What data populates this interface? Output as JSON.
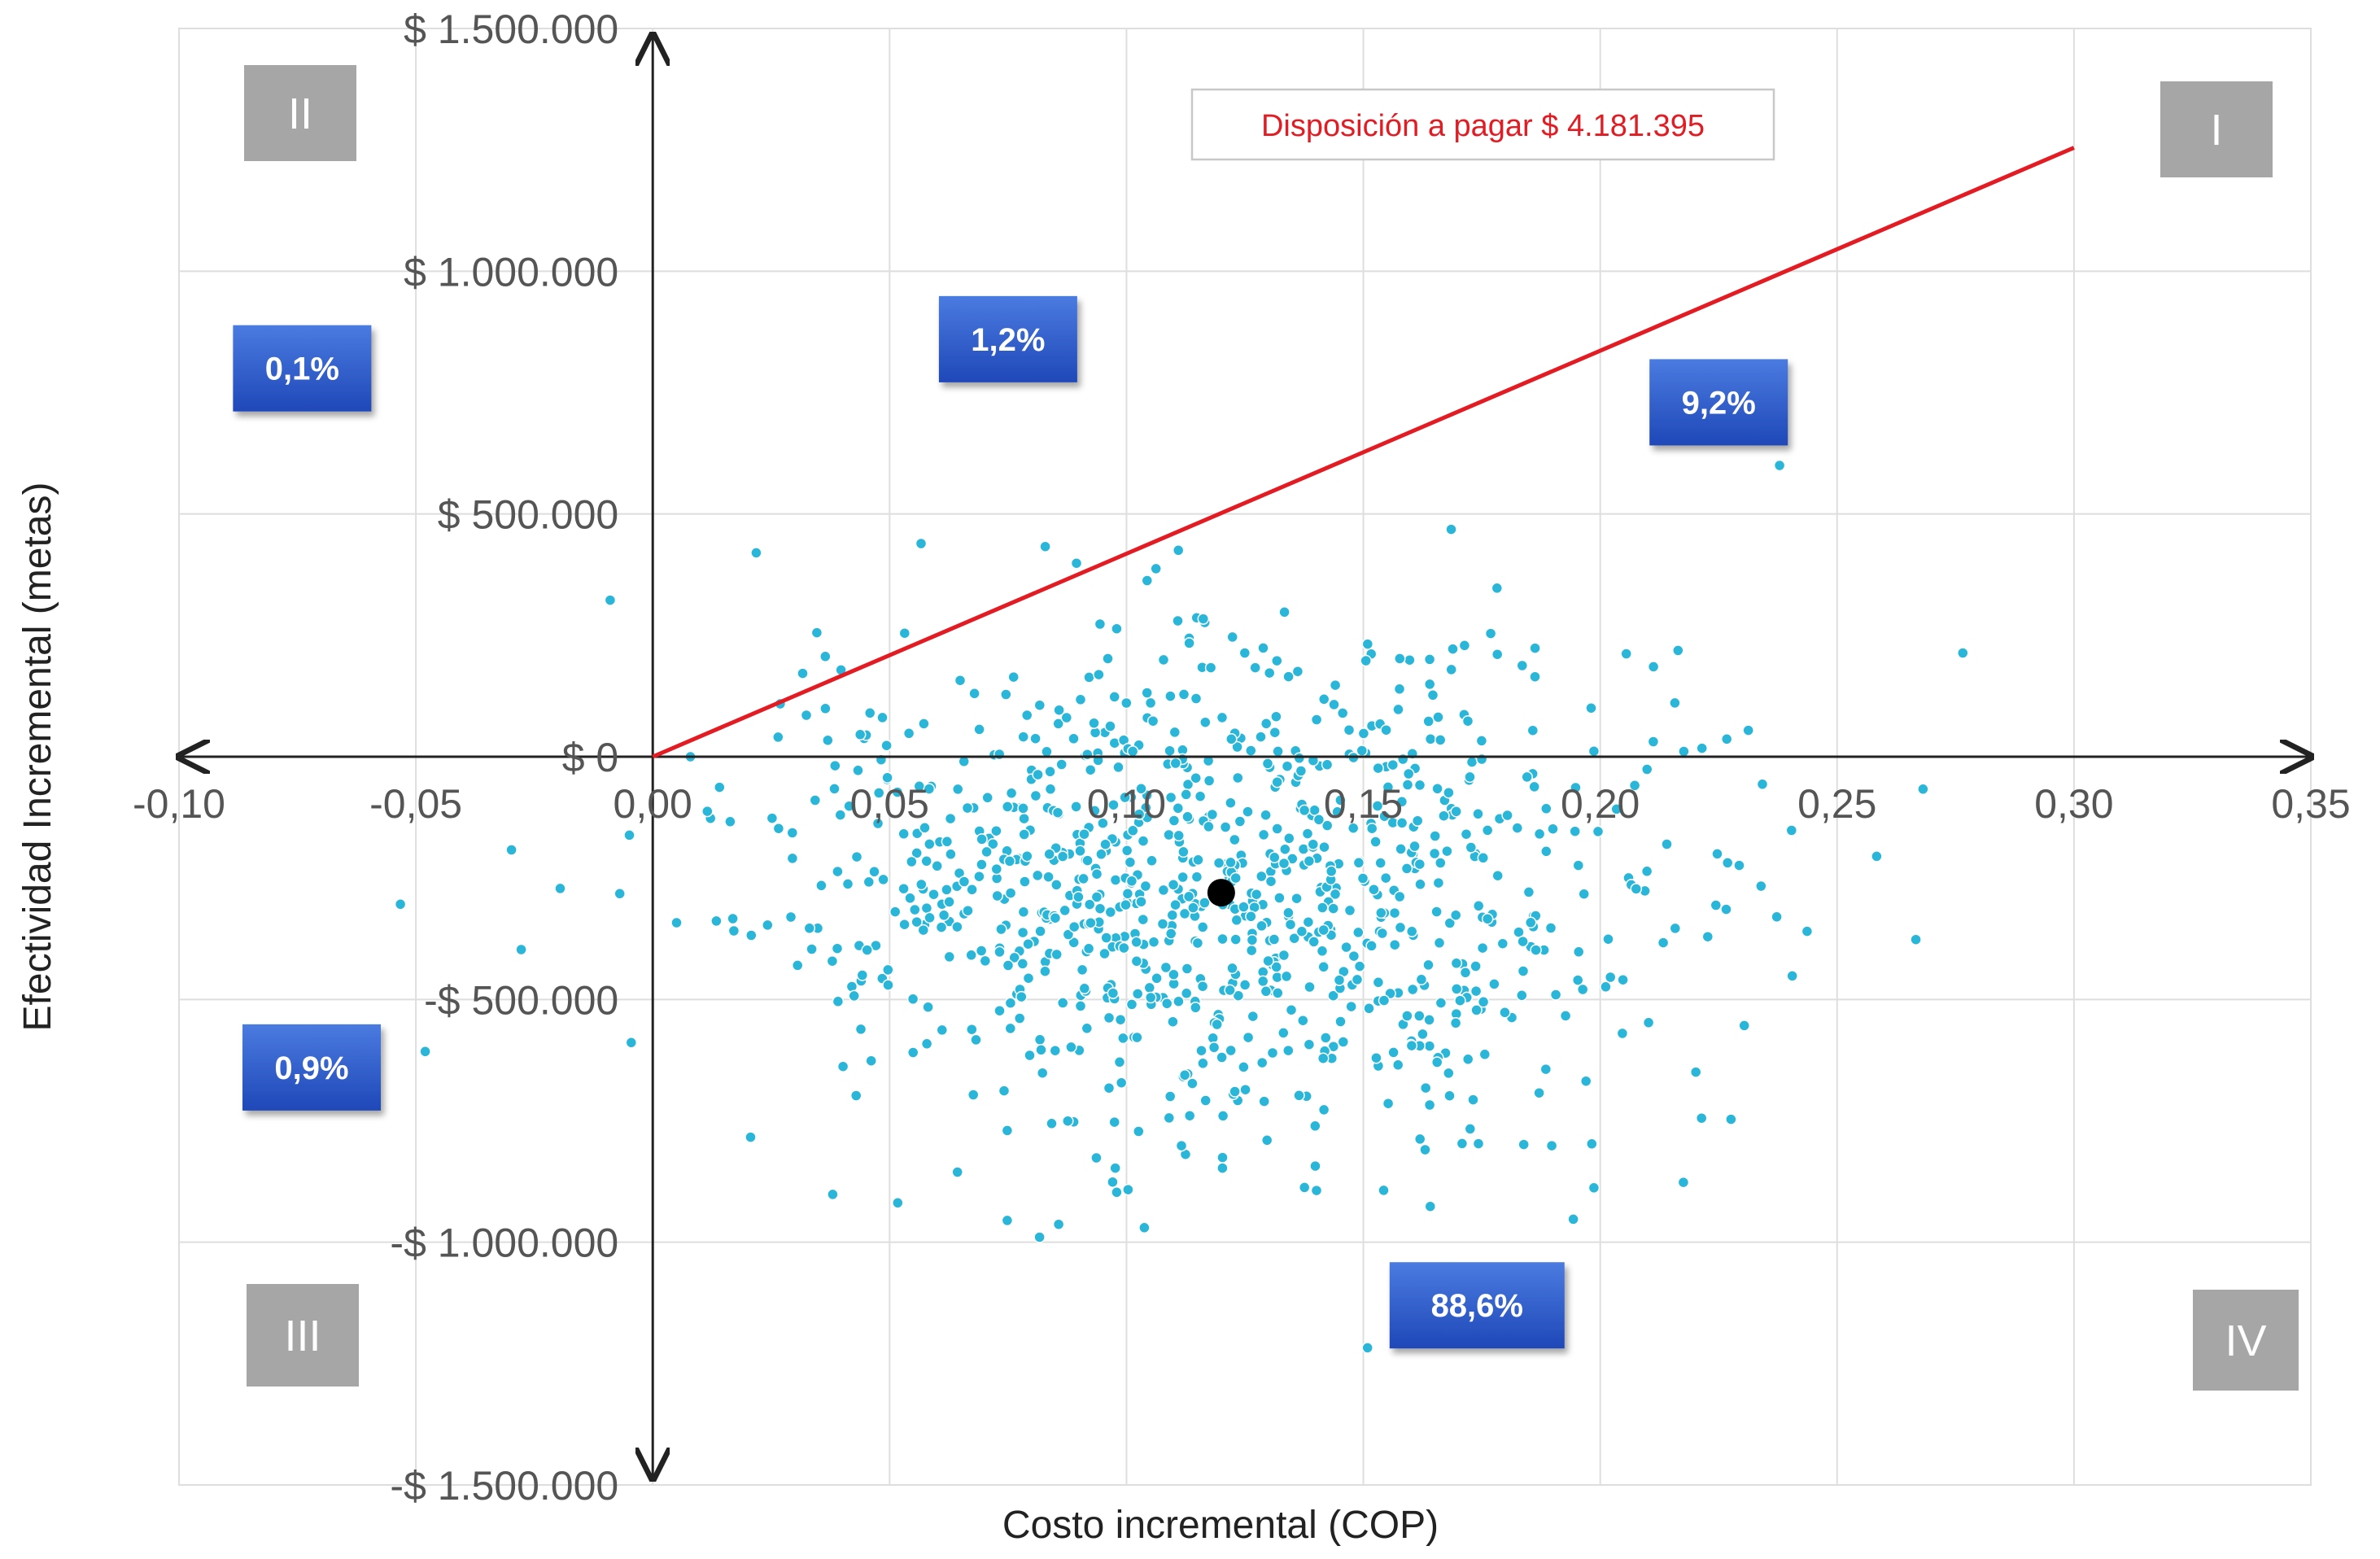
{
  "chart_data": {
    "type": "scatter",
    "title": "",
    "xlabel": "Costo incremental (COP)",
    "ylabel": "Efectividad Incremental (metas)",
    "xlim": [
      -0.1,
      0.35
    ],
    "ylim": [
      -1500000,
      1500000
    ],
    "x_ticks": [
      {
        "value": -0.1,
        "label": "-0,10"
      },
      {
        "value": -0.05,
        "label": "-0,05"
      },
      {
        "value": 0.0,
        "label": "0,00"
      },
      {
        "value": 0.05,
        "label": "0,05"
      },
      {
        "value": 0.1,
        "label": "0,10"
      },
      {
        "value": 0.15,
        "label": "0,15"
      },
      {
        "value": 0.2,
        "label": "0,20"
      },
      {
        "value": 0.25,
        "label": "0,25"
      },
      {
        "value": 0.3,
        "label": "0,30"
      },
      {
        "value": 0.35,
        "label": "0,35"
      }
    ],
    "y_ticks": [
      {
        "value": 1500000,
        "label": "$ 1.500.000"
      },
      {
        "value": 1000000,
        "label": "$ 1.000.000"
      },
      {
        "value": 500000,
        "label": "$ 500.000"
      },
      {
        "value": 0,
        "label": "$ 0"
      },
      {
        "value": -500000,
        "label": "-$ 500.000"
      },
      {
        "value": -1000000,
        "label": "-$ 1.000.000"
      },
      {
        "value": -1500000,
        "label": "-$ 1.500.000"
      }
    ],
    "grid": true,
    "threshold_line": {
      "label": "Disposición a pagar $ 4.181.395",
      "from": [
        0.0,
        0
      ],
      "to": [
        0.3,
        1254418
      ],
      "color": "#e31b23"
    },
    "mean_point": {
      "x": 0.12,
      "y": -280000
    },
    "quadrants": [
      {
        "label": "II",
        "corner": "top-left"
      },
      {
        "label": "I",
        "corner": "top-right"
      },
      {
        "label": "III",
        "corner": "bottom-left"
      },
      {
        "label": "IV",
        "corner": "bottom-right"
      }
    ],
    "percentages": [
      {
        "label": "0,1%",
        "x": -0.074,
        "y": 800000
      },
      {
        "label": "1,2%",
        "x": 0.075,
        "y": 860000
      },
      {
        "label": "9,2%",
        "x": 0.225,
        "y": 730000
      },
      {
        "label": "0,9%",
        "x": -0.072,
        "y": -640000
      },
      {
        "label": "88,6%",
        "x": 0.174,
        "y": -1130000
      }
    ],
    "points_color": "#29b6d8",
    "series": [
      {
        "n": 1000,
        "generator": "normal",
        "x_mean": 0.12,
        "x_sd": 0.05,
        "y_mean": -280000,
        "y_sd": 260000
      }
    ]
  }
}
